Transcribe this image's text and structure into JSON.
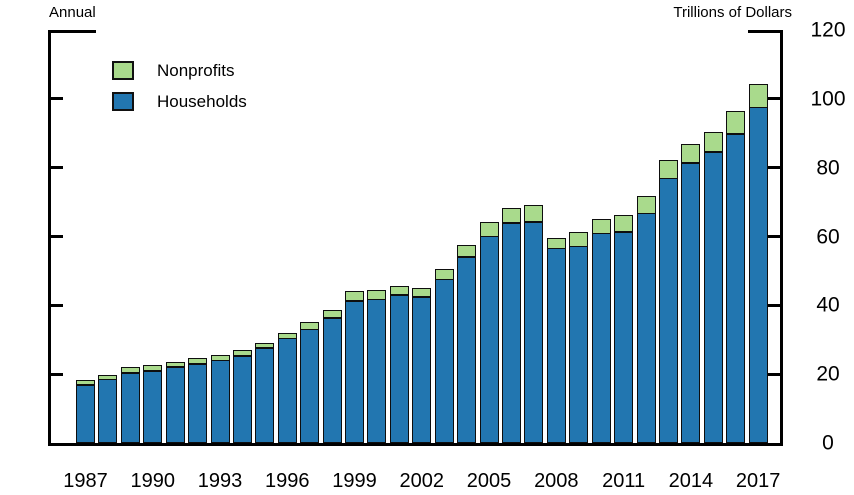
{
  "titles": {
    "left": "Annual",
    "right": "Trillions of Dollars"
  },
  "legend": {
    "items": [
      {
        "label": "Nonprofits",
        "color": "#a9da8c"
      },
      {
        "label": "Households",
        "color": "#2276b0"
      }
    ]
  },
  "chart_data": {
    "type": "bar",
    "stacked": true,
    "title": "",
    "left_annotation": "Annual",
    "right_annotation": "Trillions of Dollars",
    "ylabel": "Trillions of Dollars",
    "x": [
      1987,
      1988,
      1989,
      1990,
      1991,
      1992,
      1993,
      1994,
      1995,
      1996,
      1997,
      1998,
      1999,
      2000,
      2001,
      2002,
      2003,
      2004,
      2005,
      2006,
      2007,
      2008,
      2009,
      2010,
      2011,
      2012,
      2013,
      2014,
      2015,
      2016,
      2017
    ],
    "series": [
      {
        "name": "Households",
        "color": "#2276b0",
        "values": [
          17.0,
          18.5,
          20.4,
          20.9,
          22.1,
          23.0,
          24.0,
          25.3,
          27.6,
          30.4,
          33.0,
          36.4,
          41.3,
          41.8,
          43.0,
          42.5,
          47.6,
          54.1,
          60.1,
          64.0,
          64.3,
          56.6,
          57.1,
          60.9,
          61.3,
          66.8,
          76.9,
          81.4,
          84.7,
          89.8,
          97.5
        ]
      },
      {
        "name": "Nonprofits",
        "color": "#a9da8c",
        "values": [
          1.5,
          1.5,
          1.7,
          1.8,
          1.7,
          1.7,
          1.8,
          1.7,
          1.6,
          1.6,
          2.4,
          2.4,
          2.9,
          2.9,
          2.6,
          2.7,
          3.2,
          3.6,
          4.2,
          4.5,
          5.0,
          3.1,
          4.3,
          4.4,
          5.0,
          5.0,
          5.5,
          5.7,
          5.8,
          6.7,
          7.0
        ]
      }
    ],
    "ylim": [
      0,
      120
    ],
    "yticks": [
      0,
      20,
      40,
      60,
      80,
      100,
      120
    ],
    "xticks": [
      1987,
      1990,
      1993,
      1996,
      1999,
      2002,
      2005,
      2008,
      2011,
      2014,
      2017
    ],
    "grid": false,
    "legend_position": "top-left",
    "y_axis_side": "right"
  }
}
